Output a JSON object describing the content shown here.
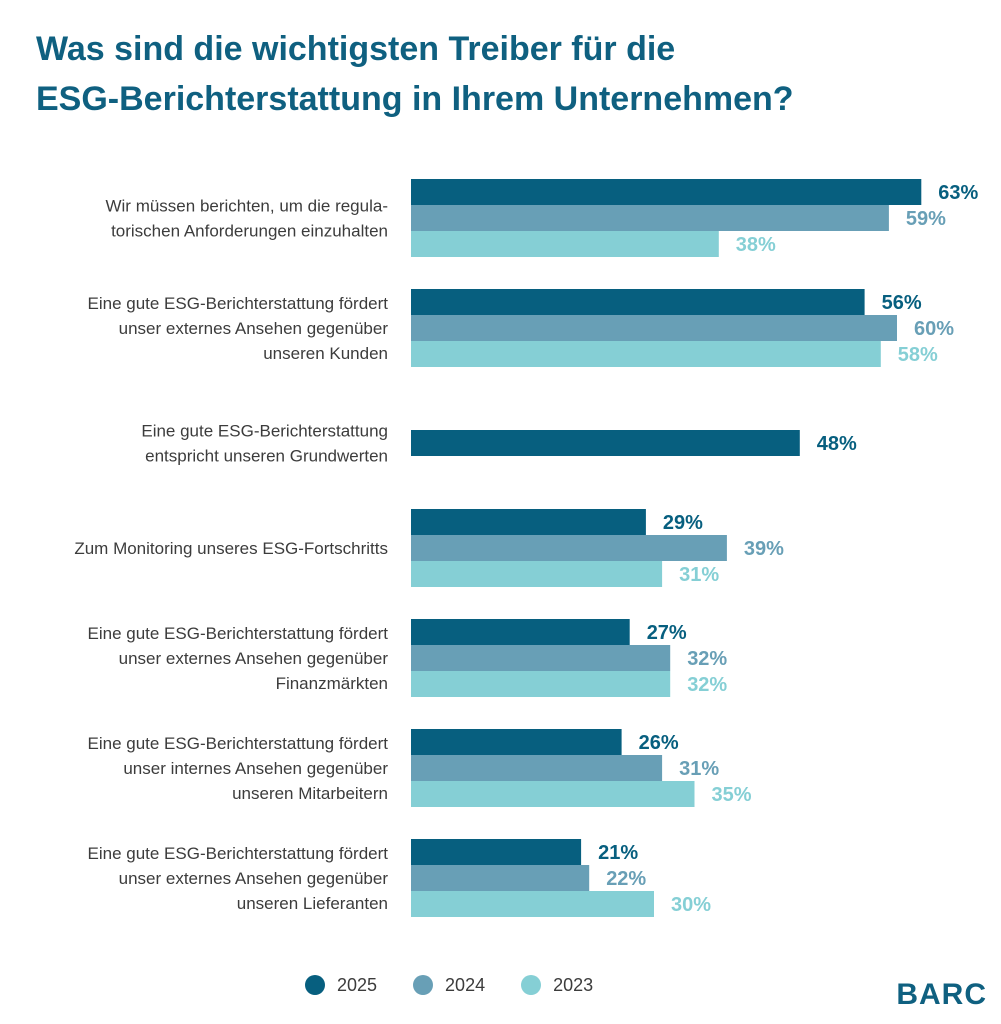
{
  "title_lines": [
    "Was sind die wichtigsten Treiber für die",
    "ESG-Berichterstattung in Ihrem Unternehmen?"
  ],
  "logo": "BARC",
  "colors": {
    "2025": "#075f7f",
    "2024": "#689fb6",
    "2023": "#85cfd5",
    "title": "#0f6080"
  },
  "chart_data": {
    "type": "bar",
    "orientation": "horizontal",
    "title": "Was sind die wichtigsten Treiber für die ESG-Berichterstattung in Ihrem Unternehmen?",
    "unit": "%",
    "legend_position": "bottom",
    "categories": [
      [
        "Wir müssen berichten, um die regula-",
        "torischen Anforderungen einzuhalten"
      ],
      [
        "Eine gute ESG-Berichterstattung fördert",
        "unser externes Ansehen gegenüber",
        "unseren Kunden"
      ],
      [
        "Eine gute ESG-Berichterstattung",
        "entspricht unseren Grundwerten"
      ],
      [
        "Zum Monitoring unseres ESG-Fortschritts"
      ],
      [
        "Eine gute ESG-Berichterstattung fördert",
        "unser externes Ansehen gegenüber",
        "Finanzmärkten"
      ],
      [
        "Eine gute ESG-Berichterstattung fördert",
        "unser internes Ansehen gegenüber",
        "unseren Mitarbeitern"
      ],
      [
        "Eine gute ESG-Berichterstattung fördert",
        "unser externes Ansehen gegenüber",
        "unseren Lieferanten"
      ]
    ],
    "series": [
      {
        "name": "2025",
        "values": [
          63,
          56,
          48,
          29,
          27,
          26,
          21
        ]
      },
      {
        "name": "2024",
        "values": [
          59,
          60,
          null,
          39,
          32,
          31,
          22
        ]
      },
      {
        "name": "2023",
        "values": [
          38,
          58,
          null,
          31,
          32,
          35,
          30
        ]
      }
    ]
  }
}
